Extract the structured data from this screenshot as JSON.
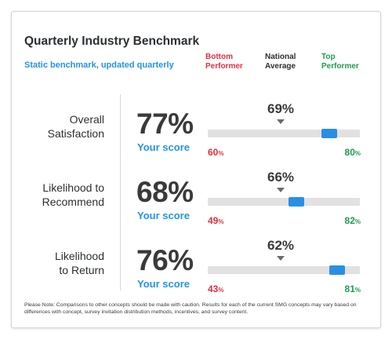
{
  "header": {
    "title": "Quarterly Industry Benchmark",
    "subtitle": "Static benchmark, updated quarterly"
  },
  "columns": {
    "bottom": "Bottom\nPerformer",
    "national": "National\nAverage",
    "top": "Top\nPerformer"
  },
  "colors": {
    "bottom": "#e0303f",
    "top": "#1e9b54",
    "accent": "#2394e6",
    "marker": "#2a8fe3"
  },
  "metrics": [
    {
      "label": "Overall\nSatisfaction",
      "score": "77%",
      "your_score_label": "Your score",
      "national": "69%",
      "bottom": "60",
      "top": "80",
      "pct": "%",
      "position": 0.8
    },
    {
      "label": "Likelihood to\nRecommend",
      "score": "68%",
      "your_score_label": "Your score",
      "national": "66%",
      "bottom": "49",
      "top": "82",
      "pct": "%",
      "position": 0.58
    },
    {
      "label": "Likelihood\nto Return",
      "score": "76%",
      "your_score_label": "Your score",
      "national": "62%",
      "bottom": "43",
      "top": "81",
      "pct": "%",
      "position": 0.85
    }
  ],
  "note": "Please Note: Comparisons to other concepts should be made with caution. Results for each of the current SMG concepts may vary based on differences with concept, survey invitation distribution methods, incentives, and survey content."
}
